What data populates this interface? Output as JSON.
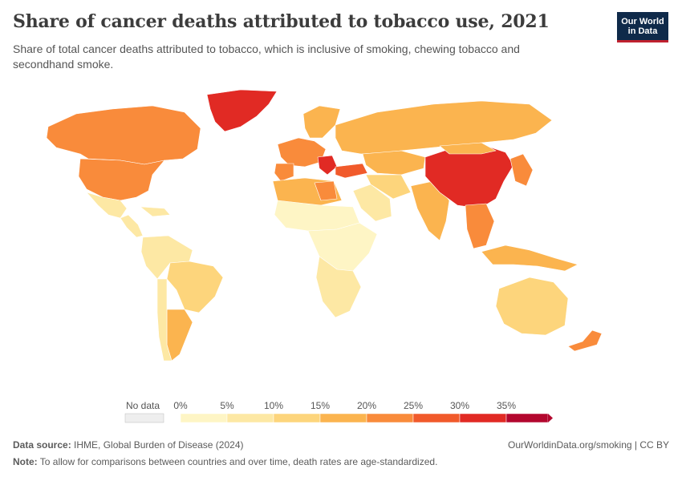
{
  "title": "Share of cancer deaths attributed to tobacco use, 2021",
  "subtitle": "Share of total cancer deaths attributed to tobacco, which is inclusive of smoking, chewing tobacco and secondhand smoke.",
  "logo": {
    "line1": "Our World",
    "line2": "in Data",
    "bg": "#0f2a4a",
    "accent": "#c0212f"
  },
  "legend": {
    "no_data_label": "No data",
    "ticks": [
      "0%",
      "5%",
      "10%",
      "15%",
      "20%",
      "25%",
      "30%",
      "35%"
    ],
    "bins": [
      {
        "from": 0,
        "to": 5,
        "color": "#fef5c5"
      },
      {
        "from": 5,
        "to": 10,
        "color": "#fde8a4"
      },
      {
        "from": 10,
        "to": 15,
        "color": "#fdd57c"
      },
      {
        "from": 15,
        "to": 20,
        "color": "#fbb44f"
      },
      {
        "from": 20,
        "to": 25,
        "color": "#f98b3b"
      },
      {
        "from": 25,
        "to": 30,
        "color": "#f15a2b"
      },
      {
        "from": 30,
        "to": 35,
        "color": "#e12a24"
      },
      {
        "from": 35,
        "to": 40,
        "color": "#b3072e"
      }
    ]
  },
  "regions": [
    {
      "name": "Greenland",
      "color": "#e12a24"
    },
    {
      "name": "Canada",
      "color": "#f98b3b"
    },
    {
      "name": "United States",
      "color": "#f98b3b"
    },
    {
      "name": "Mexico",
      "color": "#fde8a4"
    },
    {
      "name": "Central America & Caribbean",
      "color": "#fde8a4"
    },
    {
      "name": "South America north",
      "color": "#fde8a4"
    },
    {
      "name": "Brazil",
      "color": "#fdd57c"
    },
    {
      "name": "Argentina",
      "color": "#fbb44f"
    },
    {
      "name": "Chile",
      "color": "#fde8a4"
    },
    {
      "name": "Western Europe",
      "color": "#f98b3b"
    },
    {
      "name": "Iberia",
      "color": "#f98b3b"
    },
    {
      "name": "Scandinavia",
      "color": "#fbb44f"
    },
    {
      "name": "Balkans",
      "color": "#e12a24"
    },
    {
      "name": "Turkey",
      "color": "#f15a2b"
    },
    {
      "name": "Russia",
      "color": "#fbb44f"
    },
    {
      "name": "Central Asia",
      "color": "#fbb44f"
    },
    {
      "name": "North Africa",
      "color": "#fbb44f"
    },
    {
      "name": "Libya",
      "color": "#f98b3b"
    },
    {
      "name": "Sahel",
      "color": "#fef5c5"
    },
    {
      "name": "Central & East Africa",
      "color": "#fef5c5"
    },
    {
      "name": "Southern Africa",
      "color": "#fde8a4"
    },
    {
      "name": "Arabian Peninsula",
      "color": "#fde8a4"
    },
    {
      "name": "Iran",
      "color": "#fdd57c"
    },
    {
      "name": "India",
      "color": "#fbb44f"
    },
    {
      "name": "China",
      "color": "#e12a24"
    },
    {
      "name": "Mongolia",
      "color": "#fbb44f"
    },
    {
      "name": "Korea & Japan",
      "color": "#f98b3b"
    },
    {
      "name": "Southeast Asia",
      "color": "#f98b3b"
    },
    {
      "name": "Indonesia",
      "color": "#fbb44f"
    },
    {
      "name": "Australia",
      "color": "#fdd57c"
    },
    {
      "name": "New Zealand",
      "color": "#f98b3b"
    }
  ],
  "footer": {
    "source_label": "Data source:",
    "source": "IHME, Global Burden of Disease (2024)",
    "url": "OurWorldinData.org/smoking | CC BY",
    "note_label": "Note:",
    "note": "To allow for comparisons between countries and over time, death rates are age-standardized."
  }
}
